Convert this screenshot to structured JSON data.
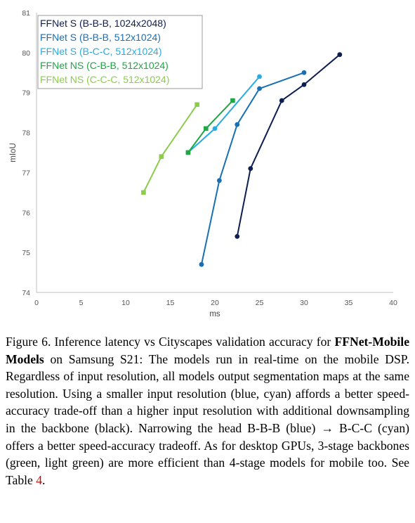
{
  "chart_data": {
    "type": "line",
    "title": "",
    "xlabel": "ms",
    "ylabel": "mIoU",
    "xlim": [
      0,
      40
    ],
    "ylim": [
      74,
      81
    ],
    "xticks": [
      0,
      5,
      10,
      15,
      20,
      25,
      30,
      35,
      40
    ],
    "yticks": [
      74,
      75,
      76,
      77,
      78,
      79,
      80,
      81
    ],
    "grid": false,
    "legend_position": "top-left",
    "series": [
      {
        "name": "FFNet S (B-B-B, 1024x2048)",
        "color": "#0d1f4f",
        "marker": "circle",
        "x": [
          22.5,
          24,
          27.5,
          30,
          34
        ],
        "y": [
          75.4,
          77.1,
          78.8,
          79.2,
          79.95
        ]
      },
      {
        "name": "FFNet S (B-B-B, 512x1024)",
        "color": "#1a6fb4",
        "marker": "circle",
        "x": [
          18.5,
          20.5,
          22.5,
          25,
          30
        ],
        "y": [
          74.7,
          76.8,
          78.2,
          79.1,
          79.5
        ]
      },
      {
        "name": "FFNet S (B-C-C, 512x1024)",
        "color": "#29abe2",
        "marker": "circle",
        "x": [
          17,
          20,
          25
        ],
        "y": [
          77.5,
          78.1,
          79.4
        ]
      },
      {
        "name": "FFNet NS (C-B-B, 512x1024)",
        "color": "#1fa645",
        "marker": "square",
        "x": [
          17,
          19,
          22
        ],
        "y": [
          77.5,
          78.1,
          78.8
        ]
      },
      {
        "name": "FFNet NS (C-C-C, 512x1024)",
        "color": "#8ccc4c",
        "marker": "square",
        "x": [
          12,
          14,
          18
        ],
        "y": [
          76.5,
          77.4,
          78.7
        ]
      }
    ]
  },
  "caption": {
    "part1": "Figure 6. Inference latency vs Cityscapes validation accuracy for ",
    "bold": "FFNet-Mobile Models",
    "part2": " on Samsung S21: The models run in real-time on the mobile DSP. Regardless of input resolution, all models output segmentation maps at the same resolution. Using a smaller input resolution (blue, cyan) affords a better speed-accuracy trade-off than a higher input resolution with additional downsampling in the backbone (black). Narrowing the head B-B-B (blue) → B-C-C (cyan) offers a better speed-accuracy tradeoff. As for desktop GPUs, 3-stage backbones (green, light green) are more efficient than 4-stage models for mobile too. See Table ",
    "ref": "4",
    "part3": "."
  }
}
